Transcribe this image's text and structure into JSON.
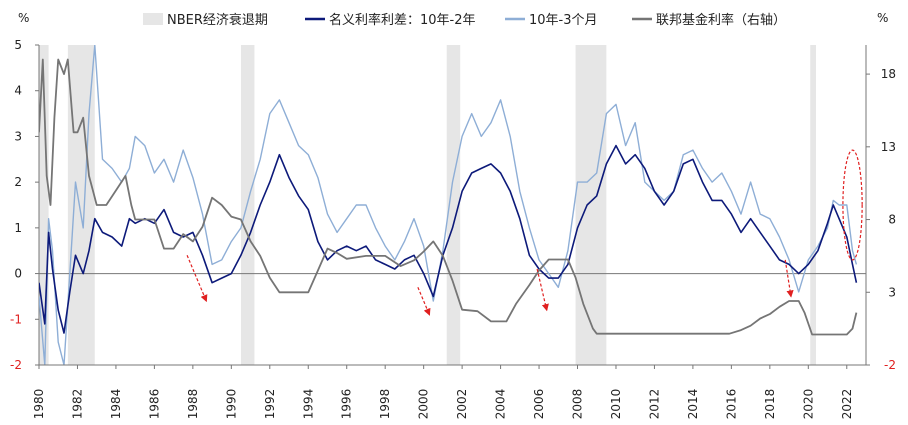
{
  "chart_data": {
    "type": "line",
    "title": "",
    "left_axis": {
      "unit": "%",
      "range": [
        -2,
        5
      ],
      "ticks": [
        5,
        4,
        3,
        2,
        1,
        0,
        -1,
        -2
      ]
    },
    "right_axis": {
      "unit": "%",
      "range": [
        -2,
        20
      ],
      "ticks": [
        18,
        13,
        8,
        3,
        -2
      ]
    },
    "x_axis": {
      "range": [
        1980,
        2023
      ],
      "ticks": [
        "1980",
        "1982",
        "1984",
        "1986",
        "1988",
        "1990",
        "1992",
        "1994",
        "1996",
        "1998",
        "2000",
        "2002",
        "2004",
        "2006",
        "2008",
        "2010",
        "2012",
        "2014",
        "2016",
        "2018",
        "2020",
        "2022"
      ]
    },
    "colors": {
      "recession": "#e6e6e6",
      "spread_10y2y": "#0d1a7a",
      "spread_10y3m": "#8eaed6",
      "fed_funds": "#757575",
      "annotation": "#e02020",
      "negative_tick": "#e02020"
    },
    "legend": [
      {
        "key": "recession",
        "label": "NBER经济衰退期",
        "style": "box"
      },
      {
        "key": "spread_10y2y",
        "label": "名义利率利差：10年-2年",
        "style": "line"
      },
      {
        "key": "spread_10y3m",
        "label": "10年-3个月",
        "style": "line"
      },
      {
        "key": "fed_funds",
        "label": "联邦基金利率（右轴）",
        "style": "line"
      }
    ],
    "recessions": [
      [
        1980.0,
        1980.5
      ],
      [
        1981.5,
        1982.9
      ],
      [
        1990.5,
        1991.2
      ],
      [
        2001.2,
        2001.9
      ],
      [
        2007.9,
        2009.5
      ],
      [
        2020.1,
        2020.4
      ]
    ],
    "series": [
      {
        "name": "名义利率利差：10年-2年",
        "axis": "left",
        "points": [
          [
            1980.0,
            -0.2
          ],
          [
            1980.3,
            -1.1
          ],
          [
            1980.5,
            0.9
          ],
          [
            1980.7,
            0.1
          ],
          [
            1981.0,
            -0.8
          ],
          [
            1981.3,
            -1.3
          ],
          [
            1981.6,
            -0.4
          ],
          [
            1981.9,
            0.4
          ],
          [
            1982.3,
            0.0
          ],
          [
            1982.6,
            0.5
          ],
          [
            1982.9,
            1.2
          ],
          [
            1983.3,
            0.9
          ],
          [
            1983.8,
            0.8
          ],
          [
            1984.3,
            0.6
          ],
          [
            1984.7,
            1.2
          ],
          [
            1985.0,
            1.1
          ],
          [
            1985.5,
            1.2
          ],
          [
            1986.0,
            1.1
          ],
          [
            1986.5,
            1.4
          ],
          [
            1987.0,
            0.9
          ],
          [
            1987.5,
            0.8
          ],
          [
            1988.0,
            0.9
          ],
          [
            1988.5,
            0.4
          ],
          [
            1989.0,
            -0.2
          ],
          [
            1989.5,
            -0.1
          ],
          [
            1990.0,
            0.0
          ],
          [
            1990.5,
            0.4
          ],
          [
            1991.0,
            0.9
          ],
          [
            1991.5,
            1.5
          ],
          [
            1992.0,
            2.0
          ],
          [
            1992.5,
            2.6
          ],
          [
            1993.0,
            2.1
          ],
          [
            1993.5,
            1.7
          ],
          [
            1994.0,
            1.4
          ],
          [
            1994.5,
            0.7
          ],
          [
            1995.0,
            0.3
          ],
          [
            1995.5,
            0.5
          ],
          [
            1996.0,
            0.6
          ],
          [
            1996.5,
            0.5
          ],
          [
            1997.0,
            0.6
          ],
          [
            1997.5,
            0.3
          ],
          [
            1998.0,
            0.2
          ],
          [
            1998.5,
            0.1
          ],
          [
            1999.0,
            0.3
          ],
          [
            1999.5,
            0.4
          ],
          [
            2000.0,
            0.0
          ],
          [
            2000.5,
            -0.5
          ],
          [
            2001.0,
            0.4
          ],
          [
            2001.5,
            1.0
          ],
          [
            2002.0,
            1.8
          ],
          [
            2002.5,
            2.2
          ],
          [
            2003.0,
            2.3
          ],
          [
            2003.5,
            2.4
          ],
          [
            2004.0,
            2.2
          ],
          [
            2004.5,
            1.8
          ],
          [
            2005.0,
            1.2
          ],
          [
            2005.5,
            0.4
          ],
          [
            2006.0,
            0.1
          ],
          [
            2006.5,
            -0.1
          ],
          [
            2007.0,
            -0.1
          ],
          [
            2007.5,
            0.2
          ],
          [
            2008.0,
            1.0
          ],
          [
            2008.5,
            1.5
          ],
          [
            2009.0,
            1.7
          ],
          [
            2009.5,
            2.4
          ],
          [
            2010.0,
            2.8
          ],
          [
            2010.5,
            2.4
          ],
          [
            2011.0,
            2.6
          ],
          [
            2011.5,
            2.3
          ],
          [
            2012.0,
            1.8
          ],
          [
            2012.5,
            1.5
          ],
          [
            2013.0,
            1.8
          ],
          [
            2013.5,
            2.4
          ],
          [
            2014.0,
            2.5
          ],
          [
            2014.5,
            2.0
          ],
          [
            2015.0,
            1.6
          ],
          [
            2015.5,
            1.6
          ],
          [
            2016.0,
            1.3
          ],
          [
            2016.5,
            0.9
          ],
          [
            2017.0,
            1.2
          ],
          [
            2017.5,
            0.9
          ],
          [
            2018.0,
            0.6
          ],
          [
            2018.5,
            0.3
          ],
          [
            2019.0,
            0.2
          ],
          [
            2019.5,
            0.0
          ],
          [
            2020.0,
            0.2
          ],
          [
            2020.5,
            0.5
          ],
          [
            2021.0,
            1.1
          ],
          [
            2021.3,
            1.5
          ],
          [
            2021.6,
            1.2
          ],
          [
            2022.0,
            0.8
          ],
          [
            2022.3,
            0.2
          ],
          [
            2022.5,
            -0.2
          ]
        ]
      },
      {
        "name": "10年-3个月",
        "axis": "left",
        "points": [
          [
            1980.0,
            -0.5
          ],
          [
            1980.3,
            -2.0
          ],
          [
            1980.5,
            1.2
          ],
          [
            1980.7,
            0.5
          ],
          [
            1981.0,
            -1.5
          ],
          [
            1981.3,
            -2.0
          ],
          [
            1981.6,
            0.0
          ],
          [
            1981.9,
            2.0
          ],
          [
            1982.3,
            1.0
          ],
          [
            1982.6,
            3.5
          ],
          [
            1982.9,
            5.0
          ],
          [
            1983.3,
            2.5
          ],
          [
            1983.8,
            2.3
          ],
          [
            1984.3,
            2.0
          ],
          [
            1984.7,
            2.3
          ],
          [
            1985.0,
            3.0
          ],
          [
            1985.5,
            2.8
          ],
          [
            1986.0,
            2.2
          ],
          [
            1986.5,
            2.5
          ],
          [
            1987.0,
            2.0
          ],
          [
            1987.5,
            2.7
          ],
          [
            1988.0,
            2.1
          ],
          [
            1988.5,
            1.3
          ],
          [
            1989.0,
            0.2
          ],
          [
            1989.5,
            0.3
          ],
          [
            1990.0,
            0.7
          ],
          [
            1990.5,
            1.0
          ],
          [
            1991.0,
            1.8
          ],
          [
            1991.5,
            2.5
          ],
          [
            1992.0,
            3.5
          ],
          [
            1992.5,
            3.8
          ],
          [
            1993.0,
            3.3
          ],
          [
            1993.5,
            2.8
          ],
          [
            1994.0,
            2.6
          ],
          [
            1994.5,
            2.1
          ],
          [
            1995.0,
            1.3
          ],
          [
            1995.5,
            0.9
          ],
          [
            1996.0,
            1.2
          ],
          [
            1996.5,
            1.5
          ],
          [
            1997.0,
            1.5
          ],
          [
            1997.5,
            1.0
          ],
          [
            1998.0,
            0.6
          ],
          [
            1998.5,
            0.3
          ],
          [
            1999.0,
            0.7
          ],
          [
            1999.5,
            1.2
          ],
          [
            2000.0,
            0.6
          ],
          [
            2000.5,
            -0.6
          ],
          [
            2001.0,
            0.5
          ],
          [
            2001.5,
            2.0
          ],
          [
            2002.0,
            3.0
          ],
          [
            2002.5,
            3.5
          ],
          [
            2003.0,
            3.0
          ],
          [
            2003.5,
            3.3
          ],
          [
            2004.0,
            3.8
          ],
          [
            2004.5,
            3.0
          ],
          [
            2005.0,
            1.8
          ],
          [
            2005.5,
            1.0
          ],
          [
            2006.0,
            0.3
          ],
          [
            2006.5,
            0.0
          ],
          [
            2007.0,
            -0.3
          ],
          [
            2007.5,
            0.5
          ],
          [
            2008.0,
            2.0
          ],
          [
            2008.5,
            2.0
          ],
          [
            2009.0,
            2.2
          ],
          [
            2009.5,
            3.5
          ],
          [
            2010.0,
            3.7
          ],
          [
            2010.5,
            2.8
          ],
          [
            2011.0,
            3.3
          ],
          [
            2011.5,
            2.0
          ],
          [
            2012.0,
            1.8
          ],
          [
            2012.5,
            1.6
          ],
          [
            2013.0,
            1.8
          ],
          [
            2013.5,
            2.6
          ],
          [
            2014.0,
            2.7
          ],
          [
            2014.5,
            2.3
          ],
          [
            2015.0,
            2.0
          ],
          [
            2015.5,
            2.2
          ],
          [
            2016.0,
            1.8
          ],
          [
            2016.5,
            1.3
          ],
          [
            2017.0,
            2.0
          ],
          [
            2017.5,
            1.3
          ],
          [
            2018.0,
            1.2
          ],
          [
            2018.5,
            0.8
          ],
          [
            2019.0,
            0.3
          ],
          [
            2019.5,
            -0.4
          ],
          [
            2020.0,
            0.3
          ],
          [
            2020.5,
            0.6
          ],
          [
            2021.0,
            1.0
          ],
          [
            2021.3,
            1.6
          ],
          [
            2021.6,
            1.5
          ],
          [
            2022.0,
            1.5
          ],
          [
            2022.3,
            0.5
          ],
          [
            2022.5,
            0.2
          ]
        ]
      },
      {
        "name": "联邦基金利率（右轴）",
        "axis": "right",
        "points": [
          [
            1980.0,
            14
          ],
          [
            1980.2,
            19
          ],
          [
            1980.4,
            11
          ],
          [
            1980.6,
            9
          ],
          [
            1980.8,
            15
          ],
          [
            1981.0,
            19
          ],
          [
            1981.3,
            18
          ],
          [
            1981.5,
            19
          ],
          [
            1981.8,
            14
          ],
          [
            1982.0,
            14
          ],
          [
            1982.3,
            15
          ],
          [
            1982.6,
            11
          ],
          [
            1982.8,
            10
          ],
          [
            1983.0,
            9
          ],
          [
            1983.5,
            9
          ],
          [
            1984.0,
            10
          ],
          [
            1984.5,
            11
          ],
          [
            1984.8,
            9
          ],
          [
            1985.0,
            8
          ],
          [
            1985.5,
            8
          ],
          [
            1986.0,
            8
          ],
          [
            1986.5,
            6
          ],
          [
            1987.0,
            6
          ],
          [
            1987.5,
            7
          ],
          [
            1988.0,
            6.5
          ],
          [
            1988.5,
            7.5
          ],
          [
            1989.0,
            9.5
          ],
          [
            1989.5,
            9
          ],
          [
            1990.0,
            8.2
          ],
          [
            1990.5,
            8
          ],
          [
            1991.0,
            6.5
          ],
          [
            1991.5,
            5.5
          ],
          [
            1992.0,
            4
          ],
          [
            1992.5,
            3
          ],
          [
            1993.0,
            3
          ],
          [
            1994.0,
            3
          ],
          [
            1994.5,
            4.5
          ],
          [
            1995.0,
            6
          ],
          [
            1995.5,
            5.7
          ],
          [
            1996.0,
            5.3
          ],
          [
            1997.0,
            5.5
          ],
          [
            1998.0,
            5.5
          ],
          [
            1998.8,
            4.8
          ],
          [
            1999.5,
            5.2
          ],
          [
            2000.0,
            5.8
          ],
          [
            2000.5,
            6.5
          ],
          [
            2001.0,
            5.5
          ],
          [
            2001.5,
            3.8
          ],
          [
            2002.0,
            1.8
          ],
          [
            2002.8,
            1.7
          ],
          [
            2003.5,
            1.0
          ],
          [
            2004.3,
            1.0
          ],
          [
            2004.8,
            2.2
          ],
          [
            2005.5,
            3.5
          ],
          [
            2006.0,
            4.5
          ],
          [
            2006.5,
            5.25
          ],
          [
            2007.5,
            5.25
          ],
          [
            2007.9,
            4.0
          ],
          [
            2008.3,
            2.2
          ],
          [
            2008.8,
            0.5
          ],
          [
            2009.0,
            0.15
          ],
          [
            2015.9,
            0.15
          ],
          [
            2016.5,
            0.4
          ],
          [
            2017.0,
            0.7
          ],
          [
            2017.5,
            1.2
          ],
          [
            2018.0,
            1.5
          ],
          [
            2018.5,
            2.0
          ],
          [
            2019.0,
            2.4
          ],
          [
            2019.5,
            2.4
          ],
          [
            2019.8,
            1.6
          ],
          [
            2020.2,
            0.1
          ],
          [
            2022.0,
            0.1
          ],
          [
            2022.3,
            0.5
          ],
          [
            2022.5,
            1.6
          ]
        ]
      }
    ],
    "annotations": {
      "arrows": [
        [
          1987.7,
          0.4,
          1988.7,
          -0.6
        ],
        [
          1999.7,
          -0.3,
          2000.3,
          -0.9
        ],
        [
          2005.9,
          0.1,
          2006.4,
          -0.8
        ],
        [
          2018.8,
          0.3,
          2019.1,
          -0.5
        ]
      ],
      "ellipse": {
        "center": [
          2022.3,
          1.5
        ],
        "radius_years": 0.5,
        "radius_value": 1.2
      }
    }
  }
}
